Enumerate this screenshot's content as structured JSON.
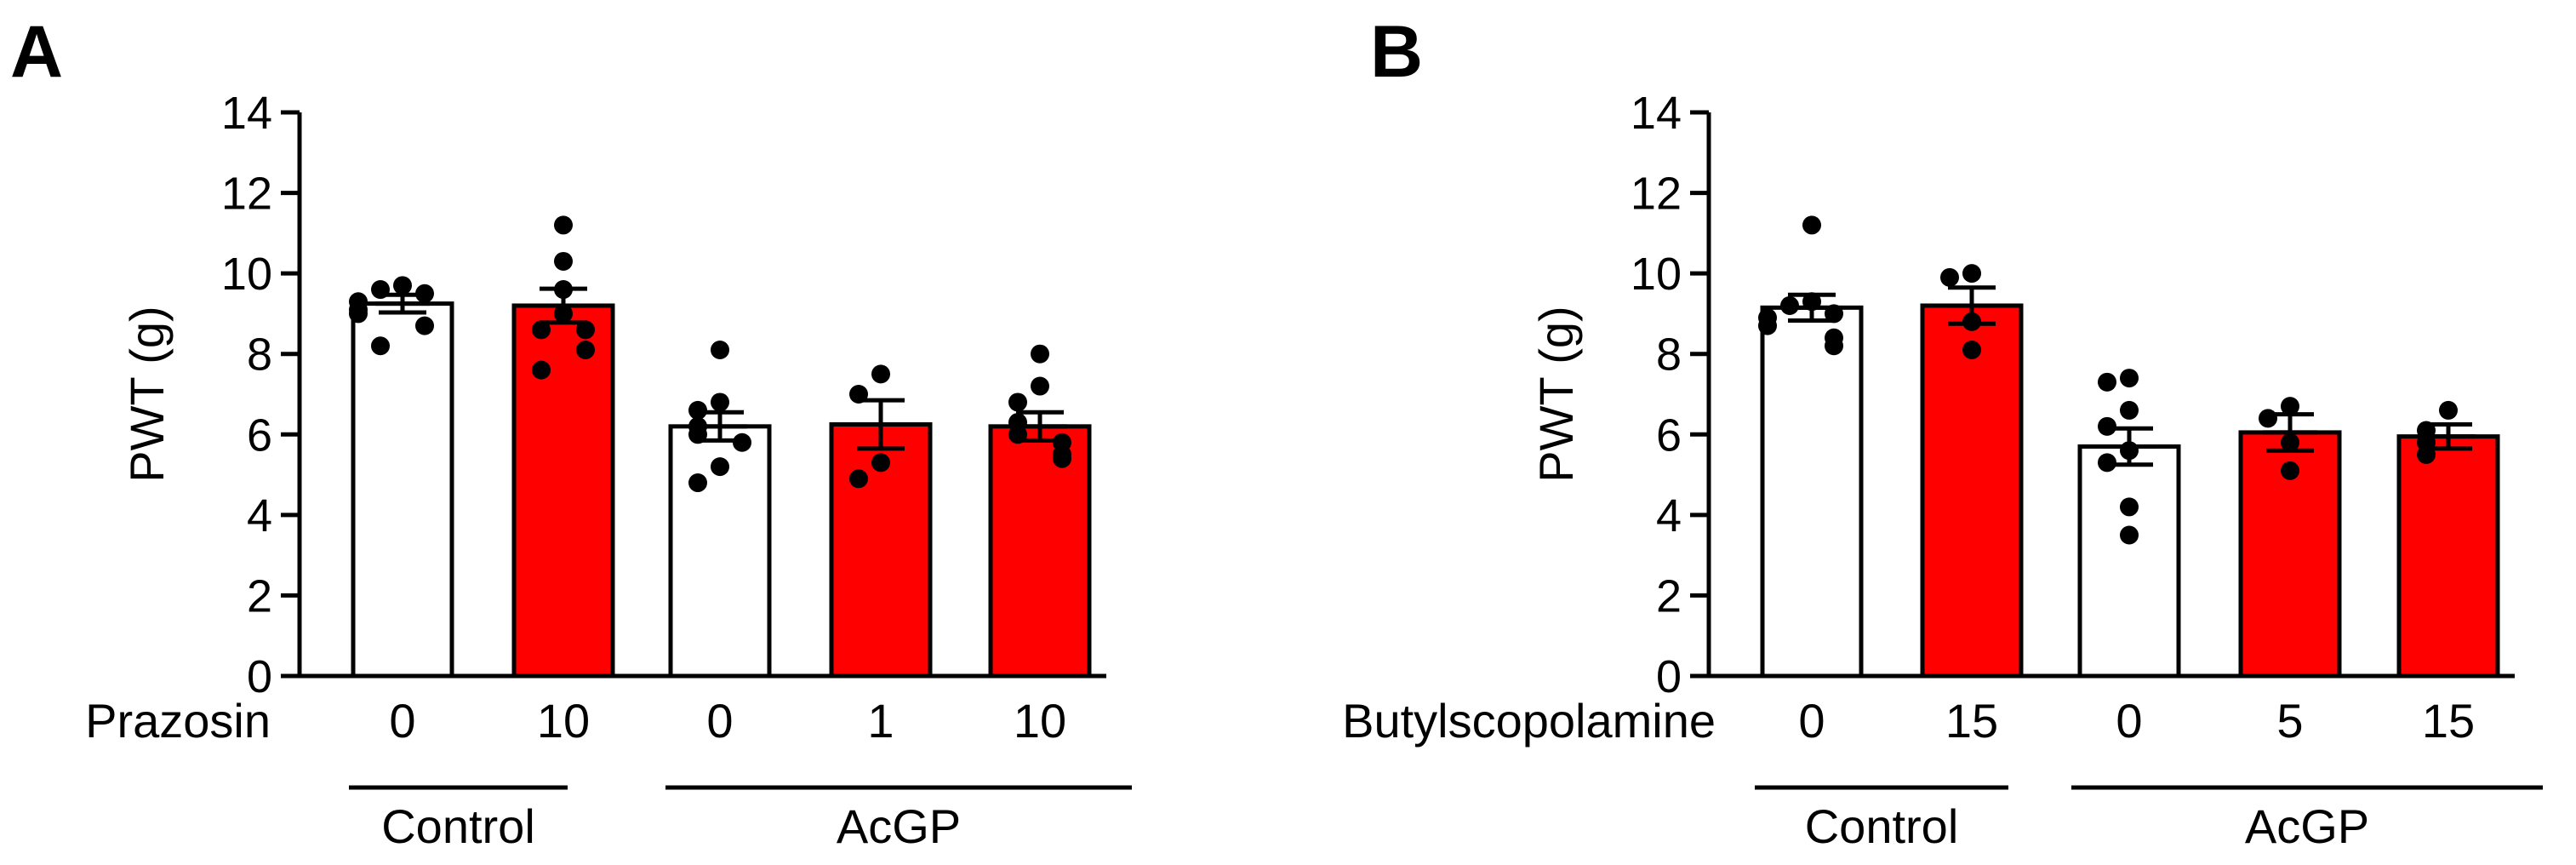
{
  "chart_data": [
    {
      "type": "bar",
      "panel": "A",
      "ylabel": "PWT (g)",
      "ylim": [
        0,
        14
      ],
      "yticks": [
        0,
        2,
        4,
        6,
        8,
        10,
        12,
        14
      ],
      "treatment_label": "Prazosin",
      "categories": [
        "0",
        "10",
        "0",
        "1",
        "10"
      ],
      "groups": [
        {
          "label": "Control",
          "span": [
            0,
            1
          ]
        },
        {
          "label": "AcGP",
          "span": [
            2,
            4
          ]
        }
      ],
      "bars": [
        {
          "value": 9.25,
          "sem": 0.22,
          "color": "#ffffff",
          "points": [
            9.7,
            9.6,
            9.5,
            9.3,
            9.1,
            9.0,
            8.7,
            8.2
          ]
        },
        {
          "value": 9.2,
          "sem": 0.42,
          "color": "#ff0000",
          "points": [
            11.2,
            10.3,
            9.6,
            9.0,
            8.6,
            8.6,
            8.1,
            7.6
          ]
        },
        {
          "value": 6.2,
          "sem": 0.35,
          "color": "#ffffff",
          "points": [
            8.1,
            6.8,
            6.6,
            6.2,
            6.0,
            5.8,
            5.2,
            4.8
          ]
        },
        {
          "value": 6.25,
          "sem": 0.6,
          "color": "#ff0000",
          "points": [
            7.5,
            7.0,
            5.3,
            4.9
          ]
        },
        {
          "value": 6.2,
          "sem": 0.35,
          "color": "#ff0000",
          "points": [
            8.0,
            7.2,
            6.8,
            6.3,
            6.0,
            5.8,
            5.5,
            5.4
          ]
        }
      ]
    },
    {
      "type": "bar",
      "panel": "B",
      "ylabel": "PWT (g)",
      "ylim": [
        0,
        14
      ],
      "yticks": [
        0,
        2,
        4,
        6,
        8,
        10,
        12,
        14
      ],
      "treatment_label": "Butylscopolamine",
      "categories": [
        "0",
        "15",
        "0",
        "5",
        "15"
      ],
      "groups": [
        {
          "label": "Control",
          "span": [
            0,
            1
          ]
        },
        {
          "label": "AcGP",
          "span": [
            2,
            4
          ]
        }
      ],
      "bars": [
        {
          "value": 9.15,
          "sem": 0.32,
          "color": "#ffffff",
          "points": [
            11.2,
            9.3,
            9.2,
            9.0,
            8.9,
            8.7,
            8.4,
            8.2
          ]
        },
        {
          "value": 9.2,
          "sem": 0.45,
          "color": "#ff0000",
          "points": [
            10.0,
            9.9,
            8.8,
            8.1
          ]
        },
        {
          "value": 5.7,
          "sem": 0.45,
          "color": "#ffffff",
          "points": [
            7.4,
            7.3,
            6.6,
            6.2,
            5.6,
            5.3,
            4.2,
            3.5
          ]
        },
        {
          "value": 6.05,
          "sem": 0.45,
          "color": "#ff0000",
          "points": [
            6.7,
            6.4,
            5.8,
            5.1
          ]
        },
        {
          "value": 5.95,
          "sem": 0.3,
          "color": "#ff0000",
          "points": [
            6.6,
            6.1,
            5.8,
            5.5
          ]
        }
      ]
    }
  ]
}
